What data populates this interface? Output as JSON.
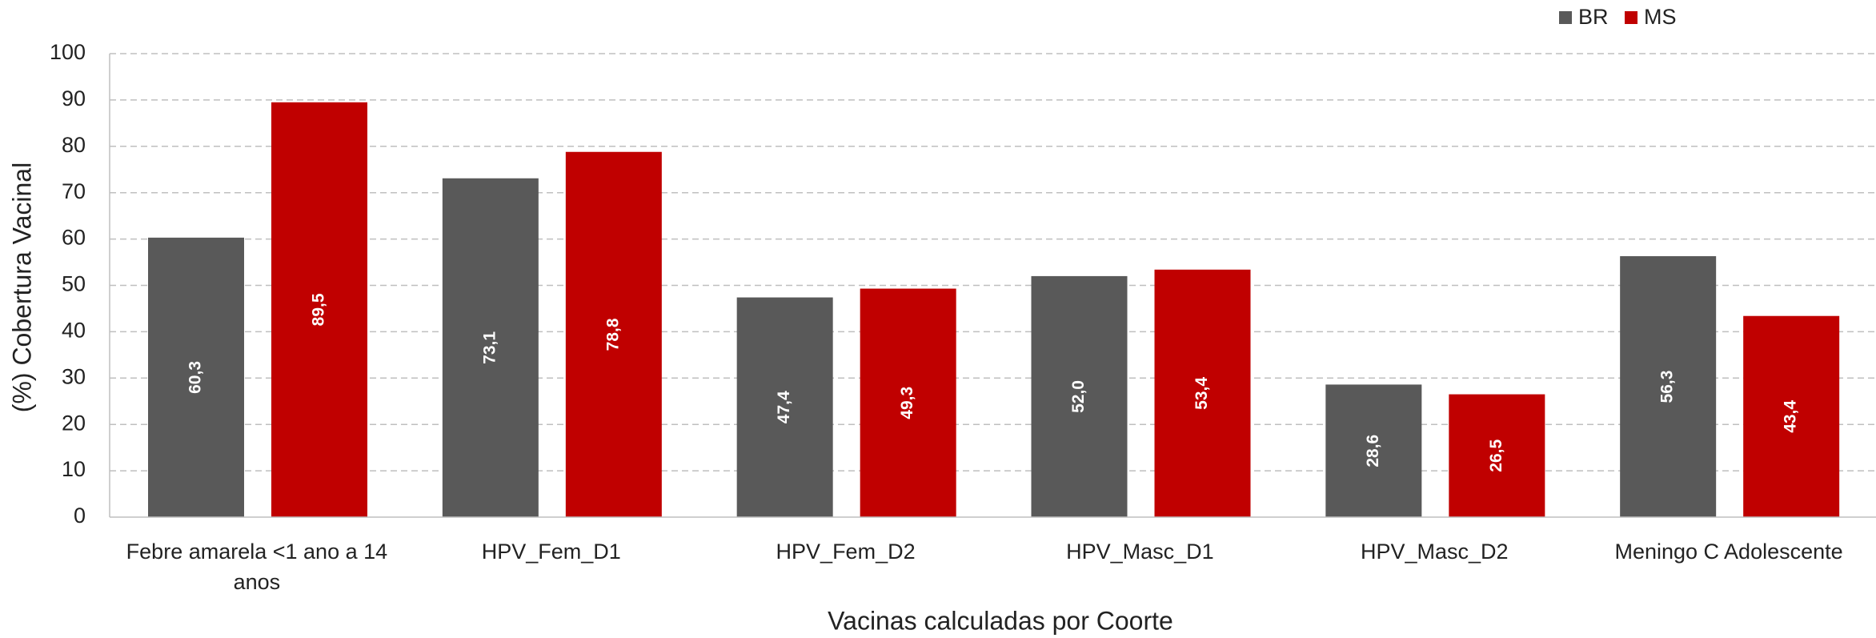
{
  "chart_data": {
    "type": "bar",
    "x_label": "Vacinas calculadas por Coorte",
    "y_label": "(%) Cobertura Vacinal",
    "categories": [
      "Febre amarela <1 ano a 14 anos",
      "HPV_Fem_D1",
      "HPV_Fem_D2",
      "HPV_Masc_D1",
      "HPV_Masc_D2",
      "Meningo C Adolescente"
    ],
    "series": [
      {
        "name": "BR",
        "color": "#595959",
        "values": [
          60.3,
          73.1,
          47.4,
          52.0,
          28.6,
          56.3
        ],
        "value_labels": [
          "60,3",
          "73,1",
          "47,4",
          "52,0",
          "28,6",
          "56,3"
        ]
      },
      {
        "name": "MS",
        "color": "#c00000",
        "values": [
          89.5,
          78.8,
          49.3,
          53.4,
          26.5,
          43.4
        ],
        "value_labels": [
          "89,5",
          "78,8",
          "49,3",
          "53,4",
          "26,5",
          "43,4"
        ]
      }
    ],
    "ylim": [
      0,
      100
    ],
    "yticks": [
      0,
      10,
      20,
      30,
      40,
      50,
      60,
      70,
      80,
      90,
      100
    ],
    "grid": true,
    "legend": "top-right"
  }
}
